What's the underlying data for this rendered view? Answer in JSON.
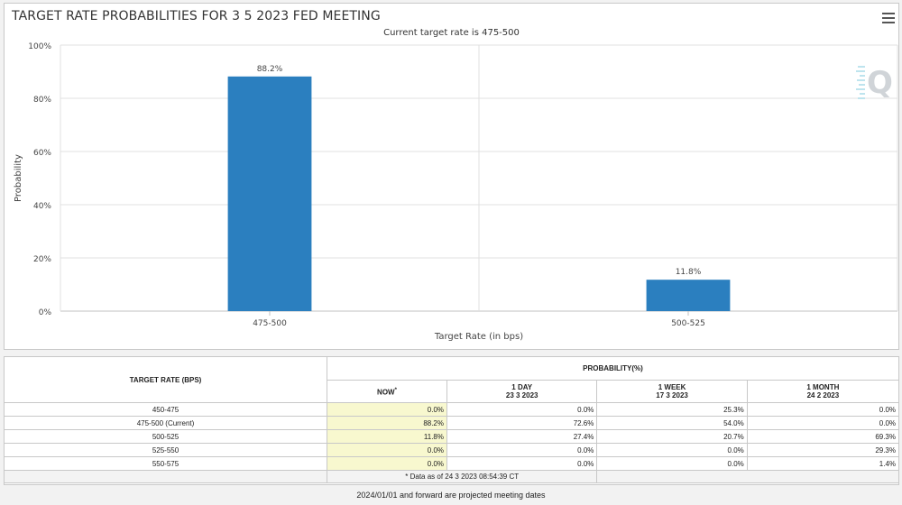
{
  "chart_data": {
    "type": "bar",
    "title": "TARGET RATE PROBABILITIES FOR 3 5 2023 FED MEETING",
    "subtitle": "Current target rate is 475-500",
    "categories": [
      "475-500",
      "500-525"
    ],
    "values": [
      88.2,
      11.8
    ],
    "data_labels": [
      "88.2%",
      "11.8%"
    ],
    "xlabel": "Target Rate (in bps)",
    "ylabel": "Probability",
    "ylim": [
      0,
      100
    ],
    "yticks": [
      "0%",
      "20%",
      "40%",
      "60%",
      "80%",
      "100%"
    ],
    "grid": true,
    "bar_color": "#2b7fbf"
  },
  "menu_icon": "hamburger-menu-icon",
  "watermark_icon": "q-logo-icon",
  "table": {
    "rate_header": "TARGET RATE (BPS)",
    "prob_header": "PROBABILITY(%)",
    "columns": [
      {
        "label": "NOW",
        "sup": "*",
        "date": ""
      },
      {
        "label": "1 DAY",
        "date": "23 3 2023"
      },
      {
        "label": "1 WEEK",
        "date": "17 3 2023"
      },
      {
        "label": "1 MONTH",
        "date": "24 2 2023"
      }
    ],
    "rows": [
      {
        "rate": "450-475",
        "values": [
          "0.0%",
          "0.0%",
          "25.3%",
          "0.0%"
        ]
      },
      {
        "rate": "475-500 (Current)",
        "values": [
          "88.2%",
          "72.6%",
          "54.0%",
          "0.0%"
        ]
      },
      {
        "rate": "500-525",
        "values": [
          "11.8%",
          "27.4%",
          "20.7%",
          "69.3%"
        ]
      },
      {
        "rate": "525-550",
        "values": [
          "0.0%",
          "0.0%",
          "0.0%",
          "29.3%"
        ]
      },
      {
        "rate": "550-575",
        "values": [
          "0.0%",
          "0.0%",
          "0.0%",
          "1.4%"
        ]
      }
    ],
    "data_note": "* Data as of 24 3 2023 08:54:39 CT"
  },
  "footer_note": "2024/01/01 and forward are projected meeting dates",
  "colors": {
    "now_highlight": "#f8f8cf",
    "grid": "#e0e0e0"
  }
}
